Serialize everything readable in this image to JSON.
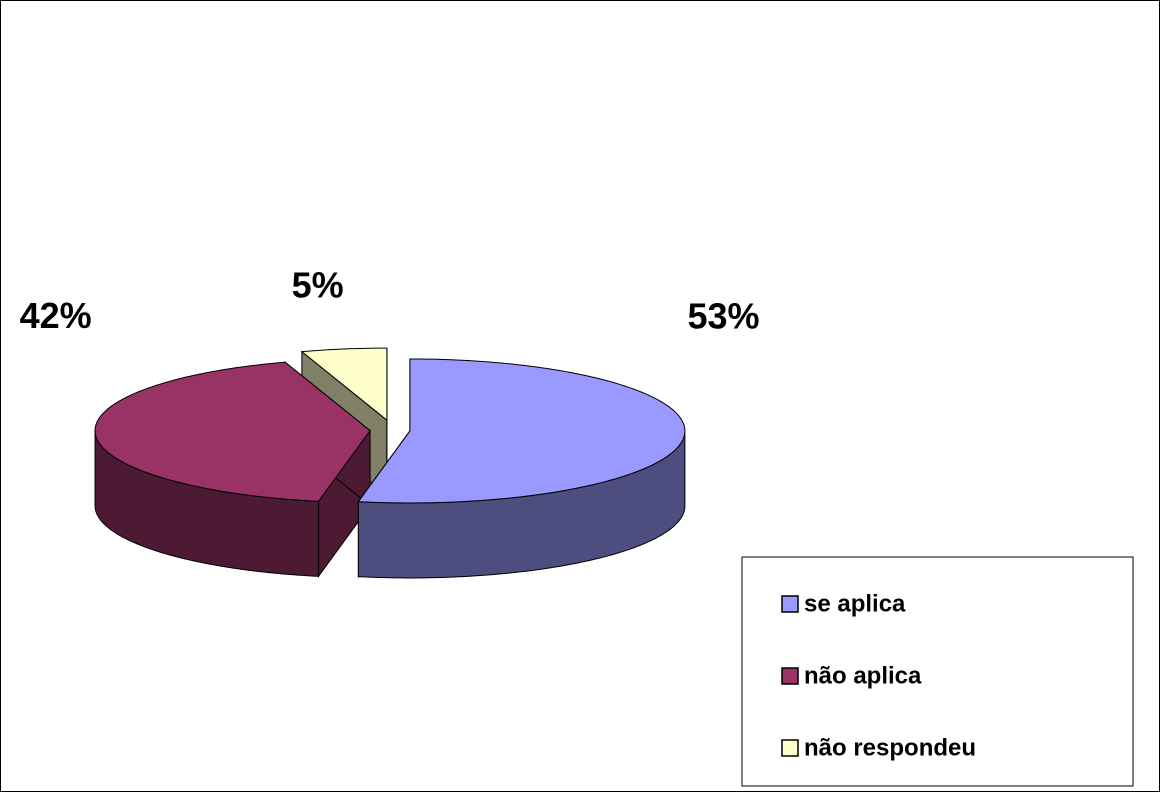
{
  "chart_data": {
    "type": "pie",
    "categories": [
      "se aplica",
      "não aplica",
      "não respondeu"
    ],
    "values": [
      53,
      42,
      5
    ],
    "value_labels": [
      "53%",
      "42%",
      "5%"
    ],
    "colors": [
      "#9999ff",
      "#993366",
      "#ffffcc"
    ],
    "legend": "bottom-right"
  }
}
